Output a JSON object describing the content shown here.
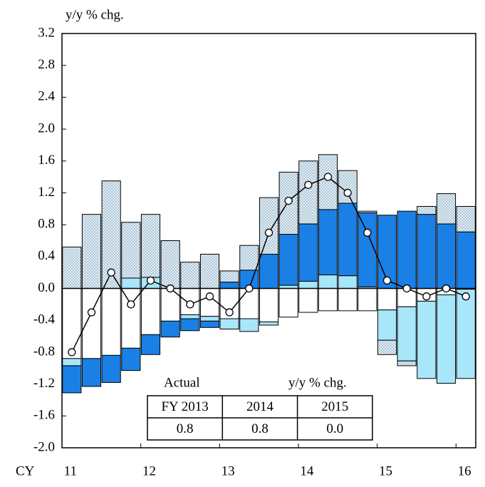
{
  "chart_data": {
    "type": "stacked-bar-line",
    "ylabel": "y/y % chg.",
    "xlabel": "CY",
    "categories": [
      "11",
      null,
      null,
      null,
      "12",
      null,
      null,
      null,
      "13",
      null,
      null,
      null,
      "14",
      null,
      null,
      null,
      "15",
      null,
      null,
      null,
      "16"
    ],
    "ylim": [
      -2.0,
      3.2
    ],
    "yticks": [
      {
        "value": -2.0,
        "label": "-2.0"
      },
      -1.6,
      -1.2,
      -0.8,
      -0.4,
      {
        "value": 0,
        "label": "0.0"
      },
      0.4,
      0.8,
      1.2,
      1.6,
      {
        "value": 2.0,
        "label": "2.0"
      },
      2.4,
      2.8,
      3.2
    ],
    "series": [
      {
        "color": "#ffffff",
        "values": [
          -0.88,
          -0.88,
          -0.84,
          -0.75,
          -0.58,
          -0.41,
          -0.33,
          -0.35,
          -0.38,
          -0.38,
          -0.42,
          -0.36,
          -0.3,
          -0.28,
          -0.28,
          -0.28,
          -0.27,
          -0.23,
          -0.16,
          -0.08,
          -0.01
        ]
      },
      {
        "color": "#a8e6fa",
        "values": [
          -0.09,
          0,
          0,
          0.13,
          0.14,
          0,
          -0.05,
          -0.06,
          -0.13,
          -0.16,
          -0.04,
          0.04,
          0.09,
          0.17,
          0.16,
          0.02,
          -0.38,
          -0.68,
          -0.97,
          -1.11,
          -1.12
        ]
      },
      {
        "color": "#1a80e6",
        "values": [
          -0.34,
          -0.35,
          -0.34,
          -0.28,
          -0.25,
          -0.2,
          -0.15,
          -0.08,
          0.08,
          0.23,
          0.43,
          0.64,
          0.72,
          0.82,
          0.91,
          0.93,
          0.92,
          0.97,
          0.93,
          0.81,
          0.71
        ]
      },
      {
        "color": "#e4eef4",
        "pattern": "dots",
        "values": [
          0.52,
          0.93,
          1.35,
          0.7,
          0.79,
          0.6,
          0.33,
          0.43,
          0.14,
          0.31,
          0.71,
          0.78,
          0.79,
          0.69,
          0.41,
          0.02,
          -0.18,
          -0.06,
          0.1,
          0.38,
          0.32
        ]
      }
    ],
    "line": {
      "color": "#000000",
      "values": [
        -0.8,
        -0.3,
        0.2,
        -0.2,
        0.1,
        0.0,
        -0.2,
        -0.1,
        -0.3,
        0.0,
        0.7,
        1.1,
        1.3,
        1.4,
        1.2,
        0.7,
        0.1,
        0.0,
        -0.1,
        0.0,
        -0.1
      ]
    },
    "table": {
      "title": "Actual",
      "unit": "y/y % chg.",
      "header": [
        "FY 2013",
        "2014",
        "2015"
      ],
      "row": [
        "0.8",
        "0.8",
        "0.0"
      ]
    }
  }
}
